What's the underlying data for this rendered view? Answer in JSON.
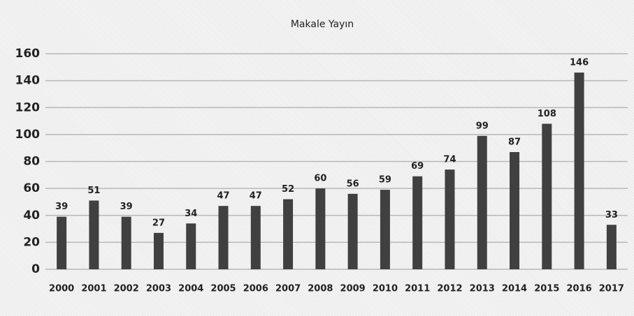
{
  "chart_data": {
    "type": "bar",
    "title": "Makale Yayın",
    "categories": [
      "2000",
      "2001",
      "2002",
      "2003",
      "2004",
      "2005",
      "2006",
      "2007",
      "2008",
      "2009",
      "2010",
      "2011",
      "2012",
      "2013",
      "2014",
      "2015",
      "2016",
      "2017"
    ],
    "values": [
      39,
      51,
      39,
      27,
      34,
      47,
      47,
      52,
      60,
      56,
      59,
      69,
      74,
      99,
      87,
      108,
      146,
      33
    ],
    "color": "#404040",
    "ylim": [
      0,
      160
    ],
    "yticks": [
      0,
      20,
      40,
      60,
      80,
      100,
      120,
      140,
      160
    ],
    "grid": true
  }
}
